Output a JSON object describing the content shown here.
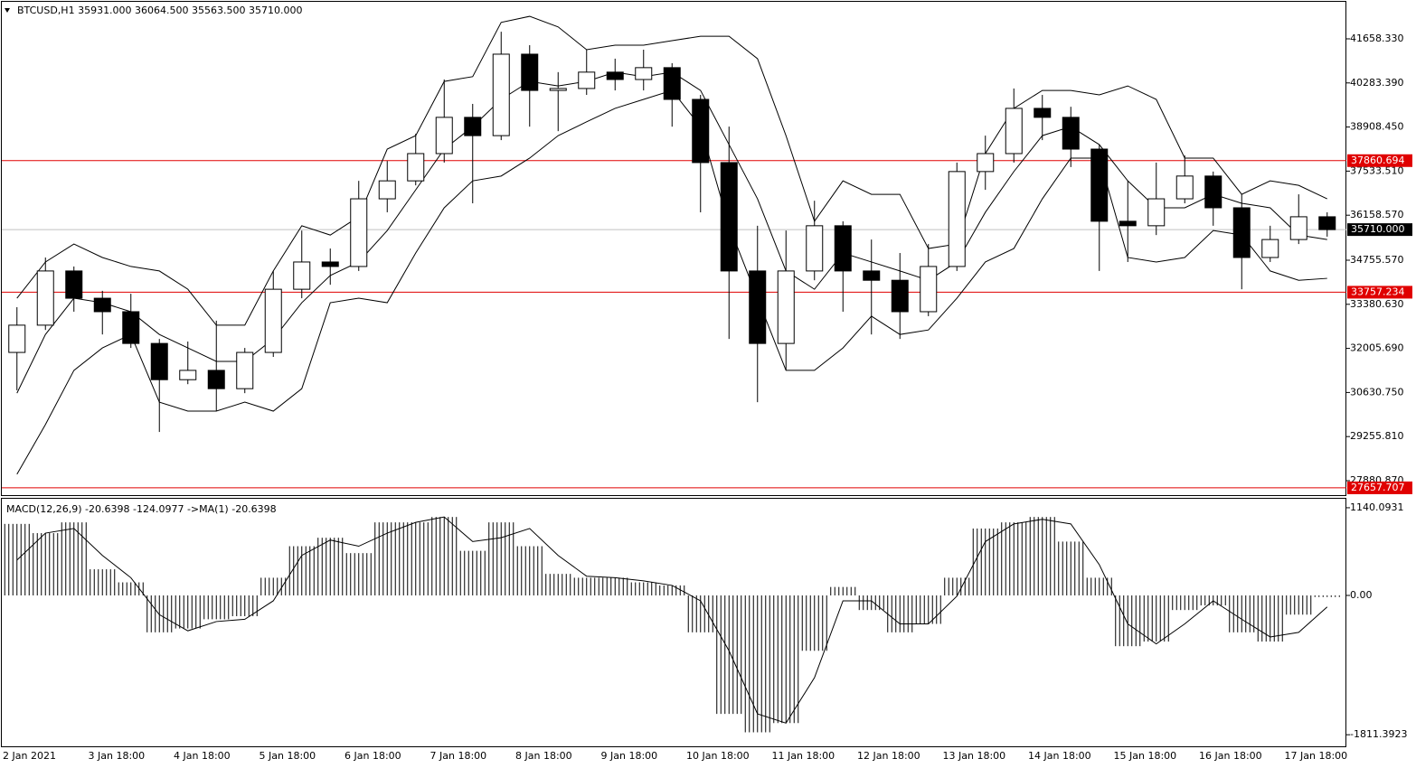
{
  "chart_data": [
    {
      "type": "candlestick",
      "title": "BTCUSD,H1  35931.000 36064.500 35563.500 35710.000",
      "categories": [
        "2 Jan 2021",
        null,
        null,
        "3 Jan 18:00",
        null,
        null,
        "4 Jan 18:00",
        null,
        null,
        "5 Jan 18:00",
        null,
        null,
        "6 Jan 18:00",
        null,
        null,
        "7 Jan 18:00",
        null,
        null,
        "8 Jan 18:00",
        null,
        null,
        "9 Jan 18:00",
        null,
        null,
        "10 Jan 18:00",
        null,
        null,
        "11 Jan 18:00",
        null,
        null,
        "12 Jan 18:00",
        null,
        null,
        "13 Jan 18:00",
        null,
        null,
        "14 Jan 18:00",
        null,
        null,
        "15 Jan 18:00",
        null,
        null,
        "16 Jan 18:00",
        null,
        null,
        "17 Jan 18:00",
        null
      ],
      "open": [
        31880,
        32730,
        34420,
        33570,
        33150,
        32160,
        31030,
        31320,
        30750,
        31880,
        33850,
        34700,
        34560,
        36670,
        37230,
        38080,
        39210,
        38640,
        41180,
        40050,
        40110,
        40620,
        40390,
        40760,
        39770,
        37800,
        34420,
        32160,
        34420,
        35830,
        34420,
        34130,
        33150,
        34560,
        37520,
        38080,
        39490,
        39210,
        38220,
        35970,
        35830,
        36670,
        37380,
        36390,
        34840,
        35400,
        36110
      ],
      "high": [
        33290,
        34840,
        34560,
        33800,
        33710,
        32300,
        32220,
        32870,
        32020,
        34420,
        35680,
        35120,
        37230,
        37850,
        38700,
        40390,
        39630,
        41880,
        41460,
        40620,
        41320,
        41040,
        41320,
        40900,
        39910,
        38920,
        35830,
        35680,
        36610,
        35970,
        35400,
        34980,
        35260,
        37800,
        38640,
        40110,
        39910,
        39540,
        38360,
        37230,
        37800,
        38020,
        37520,
        36810,
        35830,
        36810,
        36250
      ],
      "low": [
        30700,
        32580,
        33150,
        32440,
        32020,
        29400,
        30890,
        30050,
        30610,
        31740,
        33570,
        33990,
        34420,
        36250,
        37090,
        37800,
        36530,
        38500,
        38920,
        38780,
        39910,
        40050,
        40050,
        38920,
        36250,
        32300,
        30330,
        31320,
        34130,
        33150,
        32440,
        32300,
        33010,
        34420,
        36950,
        37800,
        38500,
        37660,
        34420,
        34700,
        35540,
        36530,
        35830,
        33850,
        34700,
        35260,
        35490
      ],
      "close": [
        32730,
        34420,
        33570,
        33150,
        32160,
        31030,
        31320,
        30750,
        31880,
        33850,
        34700,
        34560,
        36670,
        37230,
        38080,
        39210,
        38640,
        41180,
        40050,
        40110,
        40620,
        40390,
        40760,
        39770,
        37800,
        34420,
        32160,
        34420,
        35830,
        34420,
        34130,
        33150,
        34560,
        37520,
        38080,
        39490,
        39210,
        38220,
        35970,
        35830,
        36670,
        37380,
        36390,
        34840,
        35400,
        36110,
        35710
      ],
      "up_color": "#ffffff",
      "down_color": "#000000",
      "color": "#000000",
      "lines": [
        {
          "color": "#000000",
          "values": [
            33570,
            34700,
            35260,
            34840,
            34560,
            34420,
            33850,
            32730,
            32730,
            34420,
            35830,
            35540,
            36110,
            38220,
            38640,
            40330,
            40480,
            42170,
            42360,
            42030,
            41320,
            41460,
            41460,
            41600,
            41740,
            41740,
            41040,
            38640,
            35970,
            37230,
            36810,
            36810,
            35120,
            35260,
            38080,
            39490,
            40050,
            40050,
            39910,
            40190,
            39770,
            37940,
            37940,
            36810,
            37230,
            37090,
            36670
          ]
        },
        {
          "color": "#000000",
          "values": [
            30610,
            32440,
            33570,
            33430,
            33150,
            32440,
            32020,
            31600,
            31600,
            32300,
            33430,
            34280,
            34700,
            35680,
            36950,
            38220,
            38920,
            39770,
            40330,
            40190,
            40330,
            40620,
            40480,
            40620,
            40050,
            38360,
            36670,
            34420,
            33850,
            34980,
            34700,
            34420,
            34130,
            34700,
            36250,
            37520,
            38640,
            38920,
            38360,
            37230,
            36390,
            36390,
            36810,
            36530,
            36390,
            35540,
            35400
          ]
        },
        {
          "color": "#000000",
          "values": [
            28080,
            29630,
            31320,
            32020,
            32440,
            30330,
            30050,
            30050,
            30330,
            30050,
            30750,
            33430,
            33570,
            33430,
            34980,
            36390,
            37230,
            37380,
            37940,
            38640,
            39070,
            39490,
            39770,
            40050,
            38920,
            35830,
            33570,
            31320,
            31320,
            32020,
            33010,
            32440,
            32580,
            33570,
            34700,
            35120,
            36670,
            37940,
            37940,
            34840,
            34700,
            34840,
            35680,
            35540,
            34420,
            34130,
            34190
          ]
        }
      ],
      "levels": [
        {
          "value": 37860.694,
          "color": "#e00000",
          "line_color": "#e00000"
        },
        {
          "value": 33757.234,
          "color": "#e00000",
          "line_color": "#e00000"
        },
        {
          "value": 27657.707,
          "color": "#e00000",
          "line_color": "#e00000"
        },
        {
          "value": 35710,
          "label": "35710.000",
          "color": "#000000",
          "line_color": "#c0c0c0"
        }
      ],
      "ylim": [
        27430,
        42813
      ],
      "yticks": [
        {
          "value": 41658.33,
          "label": "41658.330"
        },
        {
          "value": 40283.39,
          "label": "40283.390"
        },
        {
          "value": 38908.45,
          "label": "38908.450"
        },
        {
          "value": 37533.51,
          "label": "37533.510"
        },
        {
          "value": 36158.57,
          "label": "36158.570"
        },
        {
          "value": 34755.57,
          "label": "34755.570"
        },
        {
          "value": 33380.63,
          "label": "33380.630"
        },
        {
          "value": 32005.69,
          "label": "32005.690"
        },
        {
          "value": 30630.75,
          "label": "30630.750"
        },
        {
          "value": 29255.81,
          "label": "29255.810"
        },
        {
          "value": 27880.87,
          "label": "27880.870"
        }
      ],
      "grid": false
    },
    {
      "type": "macd",
      "title": "MACD(12,26,9) -20.6398 -124.0977  ->MA(1) -20.6398",
      "values": [
        930,
        810,
        950,
        340,
        170,
        -480,
        -430,
        -310,
        -270,
        230,
        640,
        750,
        550,
        950,
        950,
        1020,
        580,
        950,
        640,
        280,
        230,
        230,
        170,
        130,
        -480,
        -1540,
        -1780,
        -1660,
        -720,
        110,
        -190,
        -480,
        -370,
        230,
        870,
        950,
        1020,
        700,
        230,
        -660,
        -600,
        -190,
        -130,
        -480,
        -600,
        -250,
        -20.6398
      ],
      "color": "#000000",
      "signal": [
        460,
        810,
        870,
        520,
        230,
        -250,
        -460,
        -340,
        -310,
        -70,
        520,
        720,
        640,
        810,
        950,
        1020,
        700,
        750,
        870,
        520,
        250,
        230,
        190,
        130,
        -70,
        -720,
        -1540,
        -1660,
        -1070,
        -70,
        -70,
        -370,
        -370,
        -10,
        700,
        930,
        990,
        930,
        400,
        -370,
        -630,
        -370,
        -70,
        -310,
        -540,
        -480,
        -150
      ],
      "signal_color": "#000000",
      "ylim": [
        -1962,
        1257
      ],
      "yticks": [
        1140.0931,
        {
          "value": 0,
          "label": "0.00"
        },
        -1811.3923
      ]
    }
  ]
}
